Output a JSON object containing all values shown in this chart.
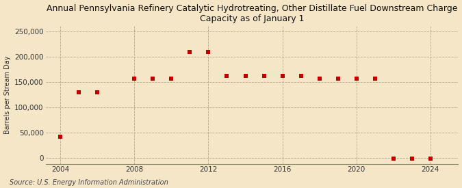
{
  "title": "Annual Pennsylvania Refinery Catalytic Hydrotreating, Other Distillate Fuel Downstream Charge\nCapacity as of January 1",
  "ylabel": "Barrels per Stream Day",
  "source": "Source: U.S. Energy Information Administration",
  "background_color": "#f5e6c8",
  "marker_color": "#c00000",
  "years": [
    2004,
    2005,
    2006,
    2008,
    2009,
    2010,
    2011,
    2012,
    2013,
    2014,
    2015,
    2016,
    2017,
    2018,
    2019,
    2020,
    2021,
    2022,
    2023,
    2024
  ],
  "values": [
    42000,
    130000,
    130000,
    157000,
    157000,
    157000,
    210000,
    210000,
    163000,
    163000,
    163000,
    163000,
    163000,
    157000,
    157000,
    157000,
    157000,
    -1500,
    -1500,
    -1500
  ],
  "xlim_left": 2003.2,
  "xlim_right": 2025.5,
  "ylim_bottom": -12000,
  "ylim_top": 262000,
  "yticks": [
    0,
    50000,
    100000,
    150000,
    200000,
    250000
  ],
  "xticks": [
    2004,
    2008,
    2012,
    2016,
    2020,
    2024
  ],
  "title_fontsize": 9,
  "ylabel_fontsize": 7,
  "tick_fontsize": 7.5,
  "source_fontsize": 7
}
